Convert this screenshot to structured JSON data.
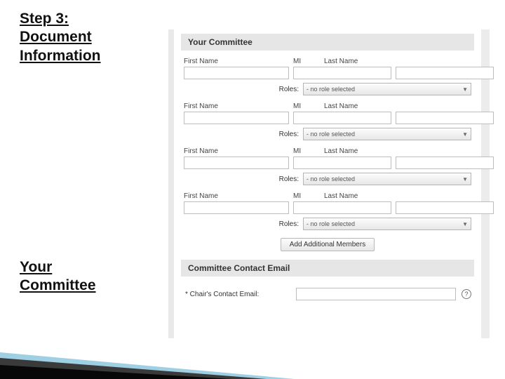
{
  "titles": {
    "step": "Step 3:\nDocument\nInformation",
    "committee": "Your\nCommittee"
  },
  "form": {
    "section1_title": "Your Committee",
    "labels": {
      "first_name": "First Name",
      "mi": "MI",
      "last_name": "Last Name",
      "roles": "Roles:"
    },
    "role_placeholder": "- no role selected",
    "members": [
      {
        "first": "",
        "mi": "",
        "last": "",
        "role": "- no role selected"
      },
      {
        "first": "",
        "mi": "",
        "last": "",
        "role": "- no role selected"
      },
      {
        "first": "",
        "mi": "",
        "last": "",
        "role": "- no role selected"
      },
      {
        "first": "",
        "mi": "",
        "last": "",
        "role": "- no role selected"
      }
    ],
    "add_button": "Add Additional Members",
    "section2_title": "Committee Contact Email",
    "email_label": "* Chair's Contact Email:",
    "email_value": ""
  },
  "style": {
    "page_bg": "#ffffff",
    "panel_border": "#e9e9e9",
    "section_header_bg": "#e6e6e6",
    "section_header_color": "#333333",
    "input_border": "#bdbdbd",
    "select_gradient_top": "#fdfdfd",
    "select_gradient_bottom": "#e6e6e6",
    "button_gradient_top": "#fcfcfc",
    "button_gradient_bottom": "#e7e7e7",
    "title_color": "#111111",
    "title_fontsize_pt": 16,
    "label_fontsize_pt": 8,
    "swoosh_colors": [
      "#080808",
      "#3a3a3a",
      "#9fcfe3"
    ]
  }
}
